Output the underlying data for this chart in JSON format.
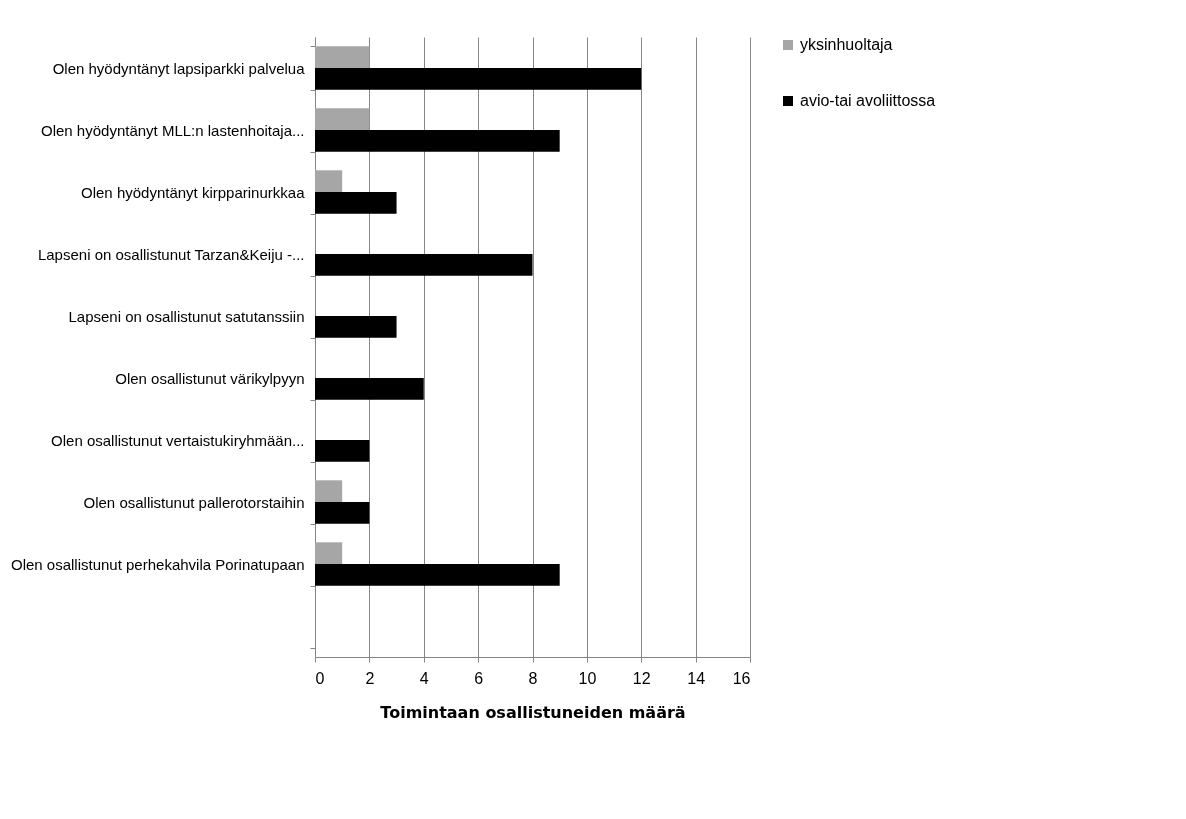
{
  "chart_data": {
    "type": "bar",
    "orientation": "horizontal",
    "xlabel": "Toimintaan osallistuneiden määrä",
    "categories": [
      "Olen hyödyntänyt lapsiparkki palvelua",
      "Olen hyödyntänyt MLL:n lastenhoitaja...",
      "Olen hyödyntänyt kirpparinurkkaa",
      "Lapseni on osallistunut Tarzan&Keiju -...",
      "Lapseni on osallistunut satutanssiin",
      "Olen osallistunut värikylpyyn",
      "Olen osallistunut vertaistukiryhmään...",
      "Olen osallistunut pallerotorstaihin",
      "Olen osallistunut perhekahvila Porinatupaan",
      null
    ],
    "series": [
      {
        "name": "yksinhuoltaja",
        "color": "#a6a6a6",
        "values": [
          2,
          2,
          1,
          0,
          0,
          0,
          0,
          1,
          1,
          null
        ]
      },
      {
        "name": "avio-tai avoliittossa",
        "color": "#000000",
        "values": [
          12,
          9,
          3,
          8,
          3,
          4,
          2,
          2,
          9,
          null
        ]
      }
    ],
    "xlim": [
      0,
      16
    ],
    "xticks": [
      0,
      2,
      4,
      6,
      8,
      10,
      12,
      14,
      16
    ],
    "grid": "x",
    "legend": "right"
  }
}
